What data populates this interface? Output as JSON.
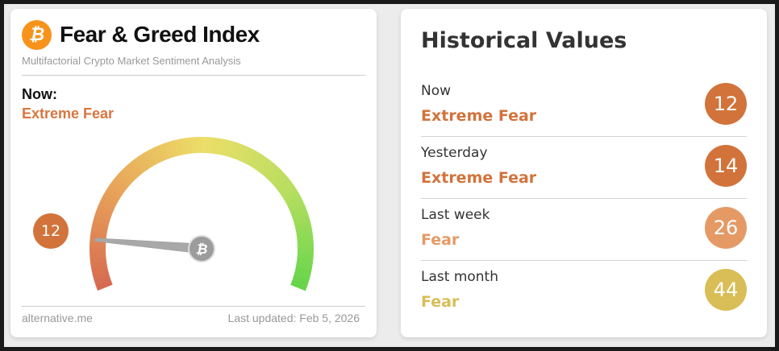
{
  "index_card": {
    "logo_icon": "bitcoin-icon",
    "title": "Fear & Greed Index",
    "subtitle": "Multifactorial Crypto Market Sentiment Analysis",
    "now_label": "Now:",
    "now_classification": "Extreme Fear",
    "gauge": {
      "value": 12,
      "min": 0,
      "max": 100,
      "needle_icon": "bitcoin-icon"
    },
    "value_badge": "12",
    "footer_source": "alternative.me",
    "footer_updated": "Last updated: Feb 5, 2026"
  },
  "historical": {
    "title": "Historical Values",
    "rows": [
      {
        "label": "Now",
        "classification": "Extreme Fear",
        "value": "12",
        "color": "#d2733b"
      },
      {
        "label": "Yesterday",
        "classification": "Extreme Fear",
        "value": "14",
        "color": "#d2733b"
      },
      {
        "label": "Last week",
        "classification": "Fear",
        "value": "26",
        "color": "#e59a66"
      },
      {
        "label": "Last month",
        "classification": "Fear",
        "value": "44",
        "color": "#d9bd56"
      }
    ]
  },
  "colors": {
    "extreme_fear": "#d2733b",
    "fear": "#e59a66",
    "neutral_fear": "#d9bd56",
    "brand": "#f7931a"
  }
}
